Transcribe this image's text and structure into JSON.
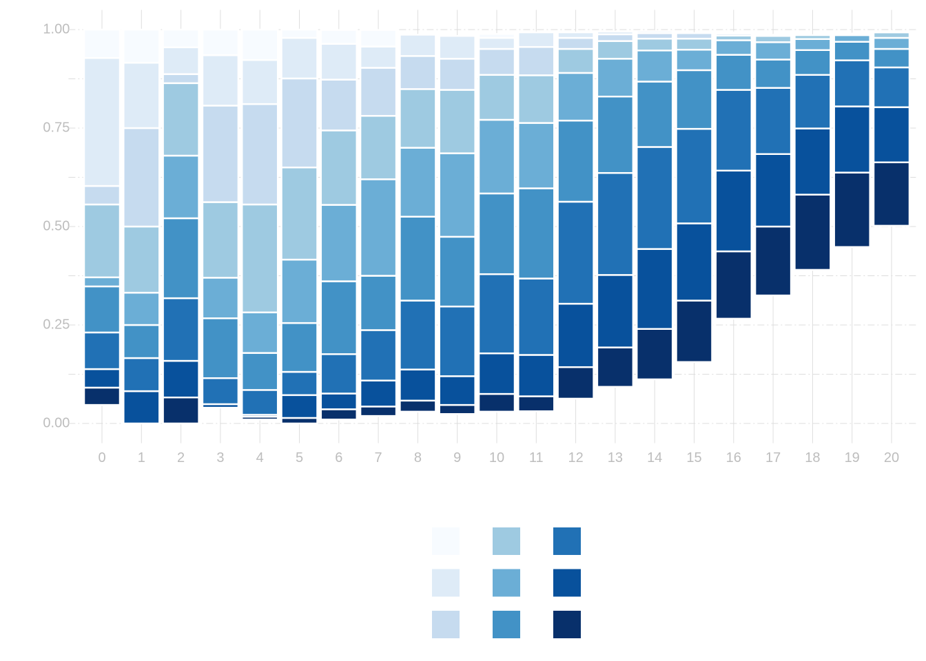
{
  "chart_data": {
    "type": "stacked_bar",
    "categories": [
      "0",
      "1",
      "2",
      "3",
      "4",
      "5",
      "6",
      "7",
      "8",
      "9",
      "10",
      "11",
      "12",
      "13",
      "14",
      "15",
      "16",
      "17",
      "18",
      "19",
      "20"
    ],
    "baseline": [
      0.047,
      0,
      0,
      0.04,
      0.01,
      0,
      0.01,
      0.019,
      0.03,
      0.024,
      0.03,
      0.031,
      0.063,
      0.093,
      0.112,
      0.156,
      0.266,
      0.325,
      0.39,
      0.448,
      0.502
    ],
    "series": [
      {
        "color": "#f7fbff",
        "values": [
          0.072,
          0.084,
          0.045,
          0.065,
          0.077,
          0.021,
          0.035,
          0.042,
          0,
          0,
          0.01,
          0,
          0,
          0,
          0,
          0,
          0,
          0,
          0,
          0,
          0
        ]
      },
      {
        "color": "#deebf7",
        "values": [
          0.325,
          0.166,
          0.068,
          0.128,
          0.112,
          0.103,
          0.091,
          0.054,
          0.054,
          0.058,
          0.028,
          0.037,
          0.014,
          0.007,
          0.005,
          0,
          0.003,
          0,
          0,
          0,
          0
        ]
      },
      {
        "color": "#c6dbef",
        "values": [
          0.047,
          0.25,
          0.023,
          0.245,
          0.255,
          0.226,
          0.129,
          0.122,
          0.084,
          0.079,
          0.066,
          0.072,
          0.028,
          0.017,
          0.014,
          0.014,
          0.005,
          0.003,
          0,
          0,
          0.004
        ]
      },
      {
        "color": "#9ecae1",
        "values": [
          0.185,
          0.168,
          0.184,
          0.192,
          0.274,
          0.234,
          0.189,
          0.161,
          0.149,
          0.161,
          0.114,
          0.121,
          0.061,
          0.045,
          0.03,
          0.028,
          0.012,
          0.016,
          0.01,
          0.004,
          0.014
        ]
      },
      {
        "color": "#6baed6",
        "values": [
          0.023,
          0.082,
          0.159,
          0.103,
          0.103,
          0.161,
          0.194,
          0.245,
          0.175,
          0.212,
          0.187,
          0.166,
          0.121,
          0.096,
          0.079,
          0.052,
          0.037,
          0.044,
          0.028,
          0.017,
          0.028
        ]
      },
      {
        "color": "#4292c6",
        "values": [
          0.117,
          0.084,
          0.203,
          0.152,
          0.094,
          0.124,
          0.185,
          0.138,
          0.213,
          0.177,
          0.205,
          0.229,
          0.206,
          0.194,
          0.166,
          0.149,
          0.089,
          0.072,
          0.063,
          0.047,
          0.047
        ]
      },
      {
        "color": "#2171b5",
        "values": [
          0.093,
          0.084,
          0.159,
          0.066,
          0.063,
          0.059,
          0.1,
          0.128,
          0.175,
          0.177,
          0.201,
          0.194,
          0.259,
          0.259,
          0.259,
          0.24,
          0.205,
          0.168,
          0.136,
          0.117,
          0.101
        ]
      },
      {
        "color": "#08519c",
        "values": [
          0.047,
          0.082,
          0.093,
          0.009,
          0.005,
          0.058,
          0.04,
          0.066,
          0.079,
          0.073,
          0.103,
          0.105,
          0.161,
          0.184,
          0.203,
          0.196,
          0.205,
          0.184,
          0.168,
          0.168,
          0.14
        ]
      },
      {
        "color": "#08306b",
        "values": [
          0.044,
          0,
          0.066,
          0,
          0.007,
          0.014,
          0.026,
          0.024,
          0.028,
          0.023,
          0.045,
          0.038,
          0.08,
          0.1,
          0.128,
          0.156,
          0.171,
          0.175,
          0.191,
          0.189,
          0.161
        ]
      }
    ],
    "ylim": [
      -0.05,
      1.05
    ],
    "yticks": [
      {
        "value": 0,
        "label": "0.00"
      },
      {
        "value": 0.25,
        "label": "0.25"
      },
      {
        "value": 0.5,
        "label": "0.50"
      },
      {
        "value": 0.75,
        "label": "0.75"
      },
      {
        "value": 1,
        "label": "1.00"
      }
    ],
    "minor_yticks": [
      0.125,
      0.375,
      0.625,
      0.875
    ],
    "grid": true
  }
}
